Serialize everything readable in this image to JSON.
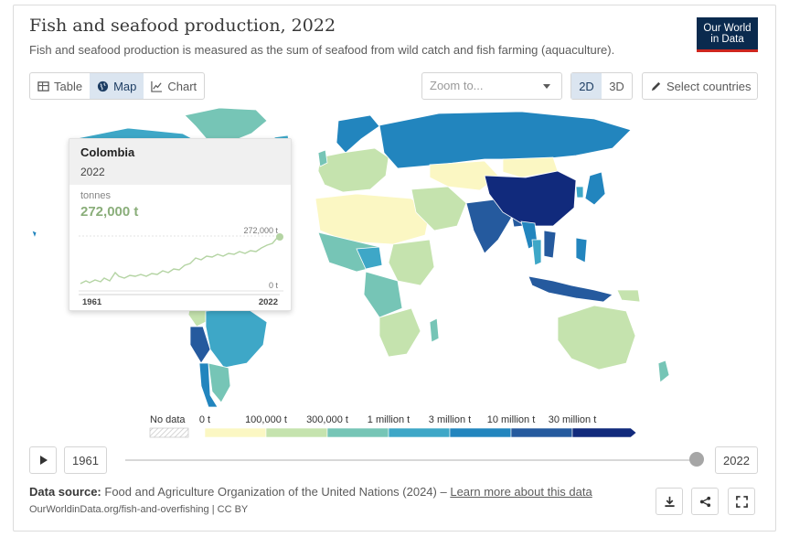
{
  "header": {
    "title": "Fish and seafood production, 2022",
    "subtitle": "Fish and seafood production is measured as the sum of seafood from wild catch and fish farming (aquaculture).",
    "logo_line1": "Our World",
    "logo_line2": "in Data"
  },
  "controls": {
    "tabs": [
      {
        "label": "Table",
        "icon": "table-icon",
        "active": false
      },
      {
        "label": "Map",
        "icon": "globe-icon",
        "active": true
      },
      {
        "label": "Chart",
        "icon": "line-chart-icon",
        "active": false
      }
    ],
    "zoom_placeholder": "Zoom to...",
    "dim_2d": "2D",
    "dim_3d": "3D",
    "select_countries": "Select countries"
  },
  "tooltip": {
    "country": "Colombia",
    "year": "2022",
    "unit": "tonnes",
    "value": "272,000 t",
    "spark_max_label": "272,000 t",
    "spark_min_label": "0 t",
    "spark_start": "1961",
    "spark_end": "2022"
  },
  "legend": {
    "no_data_label": "No data",
    "bins": [
      {
        "label": "0 t",
        "color": "#fbf7c3"
      },
      {
        "label": "100,000 t",
        "color": "#c5e3ae"
      },
      {
        "label": "300,000 t",
        "color": "#76c5b6"
      },
      {
        "label": "1 million t",
        "color": "#3ea7c7"
      },
      {
        "label": "3 million t",
        "color": "#2285be"
      },
      {
        "label": "10 million t",
        "color": "#255a9e"
      },
      {
        "label": "30 million t",
        "color": "#112a7c"
      }
    ]
  },
  "timeline": {
    "start_year": "1961",
    "end_year": "2022"
  },
  "footer": {
    "source_label": "Data source:",
    "source_text": "Food and Agriculture Organization of the United Nations (2024) –",
    "learn_more": "Learn more about this data",
    "url": "OurWorldinData.org/fish-and-overfishing | CC BY"
  },
  "colors": {
    "accent": "#1d3d63",
    "brand_bg": "#0a2a4e",
    "brand_red": "#ce261e",
    "spark_line": "#8aae7a"
  }
}
